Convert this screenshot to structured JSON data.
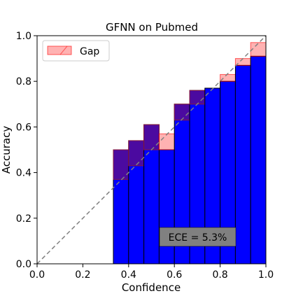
{
  "chart_data": {
    "type": "bar",
    "title": "GFNN on Pubmed",
    "xlabel": "Confidence",
    "ylabel": "Accuracy",
    "xlim": [
      0.0,
      1.0
    ],
    "ylim": [
      0.0,
      1.0
    ],
    "xticks": [
      "0.0",
      "0.2",
      "0.4",
      "0.6",
      "0.8",
      "1.0"
    ],
    "yticks": [
      "0.0",
      "0.2",
      "0.4",
      "0.6",
      "0.8",
      "1.0"
    ],
    "grid": false,
    "legend": {
      "placement": "top-left",
      "entries": [
        "Gap"
      ]
    },
    "annotation": "ECE = 5.3%",
    "bin_width": 0.0667,
    "bins": [
      {
        "start": 0.3333,
        "accuracy": 0.5,
        "confidence": 0.37
      },
      {
        "start": 0.4,
        "accuracy": 0.54,
        "confidence": 0.43
      },
      {
        "start": 0.4667,
        "accuracy": 0.61,
        "confidence": 0.5
      },
      {
        "start": 0.5333,
        "accuracy": 0.5,
        "confidence": 0.57
      },
      {
        "start": 0.6,
        "accuracy": 0.7,
        "confidence": 0.63
      },
      {
        "start": 0.6667,
        "accuracy": 0.76,
        "confidence": 0.7
      },
      {
        "start": 0.7333,
        "accuracy": 0.77,
        "confidence": 0.77
      },
      {
        "start": 0.8,
        "accuracy": 0.8,
        "confidence": 0.83
      },
      {
        "start": 0.8667,
        "accuracy": 0.87,
        "confidence": 0.9
      },
      {
        "start": 0.9333,
        "accuracy": 0.91,
        "confidence": 0.97
      }
    ],
    "colors": {
      "accuracy_bar": "#0000ff",
      "gap_fill": "#ff0000",
      "overlap": "#4b0aa0",
      "diagonal": "#808080",
      "ece_box": "#808080"
    }
  }
}
